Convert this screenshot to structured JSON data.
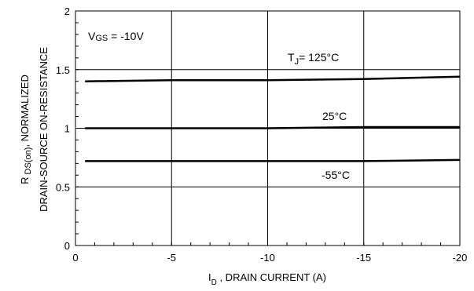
{
  "chart_data": {
    "type": "line",
    "xlabel": {
      "main": "I",
      "sub": "D",
      "rest": " , DRAIN CURRENT (A)"
    },
    "ylabel": {
      "line1_main": "R",
      "line1_sub": "DS(on)",
      "line1_rest": ", NORMALIZED",
      "line2": "DRAIN-SOURCE ON-RESISTANCE"
    },
    "xlim": [
      0,
      -20
    ],
    "ylim": [
      0,
      2
    ],
    "x_ticks": [
      0,
      -5,
      -10,
      -15,
      -20
    ],
    "x_tick_labels": [
      "0",
      "-5",
      "-10",
      "-15",
      "-20"
    ],
    "y_ticks": [
      0,
      0.5,
      1,
      1.5,
      2
    ],
    "y_tick_labels": [
      "0",
      "0.5",
      "1",
      "1.5",
      "2"
    ],
    "grid": true,
    "condition": {
      "main": "V",
      "sub": "GS",
      "rest": " = -10V"
    },
    "series": [
      {
        "label_main": "T",
        "label_sub": "J",
        "label_rest": "= 125°C",
        "x": [
          -0.5,
          -5,
          -10,
          -15,
          -20
        ],
        "y": [
          1.4,
          1.41,
          1.41,
          1.42,
          1.44
        ]
      },
      {
        "label_main": "25°C",
        "label_sub": "",
        "label_rest": "",
        "x": [
          -0.5,
          -5,
          -10,
          -15,
          -20
        ],
        "y": [
          1.0,
          1.0,
          1.0,
          1.01,
          1.01
        ]
      },
      {
        "label_main": "-55°C",
        "label_sub": "",
        "label_rest": "",
        "x": [
          -0.5,
          -5,
          -10,
          -15,
          -20
        ],
        "y": [
          0.72,
          0.72,
          0.72,
          0.72,
          0.73
        ]
      }
    ]
  }
}
